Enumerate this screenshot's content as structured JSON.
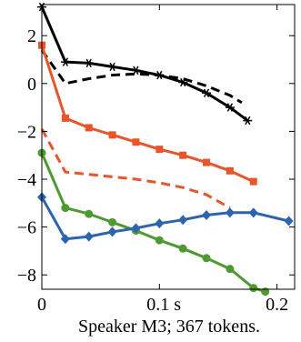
{
  "chart_data": {
    "type": "line",
    "caption": "Speaker M3; 367 tokens.",
    "x_tick_labels": [
      "0",
      "0.1 s",
      "0.2"
    ],
    "x_ticks": [
      0,
      0.1,
      0.2
    ],
    "y_ticks": [
      -8,
      -6,
      -4,
      -2,
      0,
      2
    ],
    "xlim": [
      0,
      0.215
    ],
    "ylim": [
      -8.6,
      3.3
    ],
    "grid": false,
    "series": [
      {
        "color": "#000000",
        "dashed": false,
        "marker": "star",
        "x": [
          0,
          0.02,
          0.04,
          0.06,
          0.08,
          0.1,
          0.12,
          0.14,
          0.16,
          0.175
        ],
        "y": [
          3.2,
          0.9,
          0.85,
          0.7,
          0.55,
          0.35,
          0.05,
          -0.4,
          -1.0,
          -1.55
        ]
      },
      {
        "color": "#000000",
        "dashed": true,
        "marker": "none",
        "x": [
          0,
          0.02,
          0.04,
          0.06,
          0.08,
          0.1,
          0.12,
          0.14,
          0.16,
          0.17
        ],
        "y": [
          1.4,
          0.0,
          0.2,
          0.35,
          0.4,
          0.35,
          0.2,
          -0.1,
          -0.5,
          -0.8
        ]
      },
      {
        "color": "#e8552a",
        "dashed": false,
        "marker": "square",
        "x": [
          0,
          0.02,
          0.04,
          0.06,
          0.08,
          0.1,
          0.12,
          0.14,
          0.16,
          0.18
        ],
        "y": [
          1.6,
          -1.45,
          -1.85,
          -2.15,
          -2.45,
          -2.75,
          -3.0,
          -3.3,
          -3.65,
          -4.1
        ]
      },
      {
        "color": "#e8552a",
        "dashed": true,
        "marker": "none",
        "x": [
          0,
          0.02,
          0.04,
          0.06,
          0.08,
          0.1,
          0.12,
          0.14,
          0.16
        ],
        "y": [
          -1.9,
          -3.7,
          -3.8,
          -3.9,
          -4.0,
          -4.15,
          -4.35,
          -4.65,
          -5.2
        ]
      },
      {
        "color": "#4e9a31",
        "dashed": false,
        "marker": "circle",
        "x": [
          0,
          0.02,
          0.04,
          0.06,
          0.08,
          0.1,
          0.12,
          0.14,
          0.16,
          0.18,
          0.19
        ],
        "y": [
          -2.9,
          -5.2,
          -5.45,
          -5.8,
          -6.15,
          -6.55,
          -6.9,
          -7.3,
          -7.75,
          -8.55,
          -8.7
        ]
      },
      {
        "color": "#2d64b0",
        "dashed": false,
        "marker": "diamond",
        "x": [
          0,
          0.02,
          0.04,
          0.06,
          0.08,
          0.1,
          0.12,
          0.14,
          0.16,
          0.18,
          0.21
        ],
        "y": [
          -4.75,
          -6.5,
          -6.4,
          -6.2,
          -6.05,
          -5.85,
          -5.7,
          -5.5,
          -5.4,
          -5.4,
          -5.75
        ]
      }
    ]
  }
}
